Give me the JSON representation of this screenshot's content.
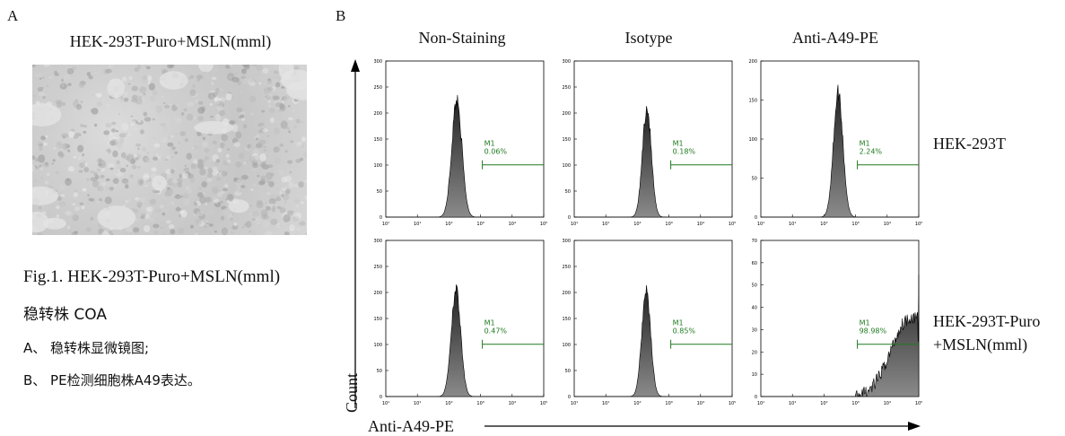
{
  "figure": {
    "panel_a_letter": "A",
    "panel_b_letter": "B",
    "panel_a_title": "HEK-293T-Puro+MSLN(mml)",
    "caption_line1": "Fig.1. HEK-293T-Puro+MSLN(mml)",
    "caption_line2": "稳转株 COA",
    "caption_line3": "A、 稳转株显微镜图;",
    "caption_line4": "B、 PE检测细胞株A49表达。",
    "x_axis_label": "Anti-A49-PE",
    "y_axis_label": "Count",
    "column_titles": [
      "Non-Staining",
      "Isotype",
      "Anti-A49-PE"
    ],
    "row_labels": [
      [
        "HEK-293T"
      ],
      [
        "HEK-293T-Puro",
        "+MSLN(mml)"
      ]
    ]
  },
  "colors": {
    "gate": "#1f7a1f",
    "fill": "#4a4a4a",
    "axis": "#000000"
  },
  "chart_data": [
    {
      "type": "area",
      "panel": "row1-non-staining",
      "x_scale": "log",
      "xlim": [
        1,
        100000
      ],
      "ylim": [
        0,
        300
      ],
      "y_ticks": [
        0,
        50,
        100,
        150,
        200,
        250,
        300
      ],
      "x_ticks": [
        "10¹",
        "10²",
        "10³",
        "10⁴",
        "10⁵"
      ],
      "peak_log": 2.25,
      "peak_height": 225,
      "peak_width": 0.16,
      "gate": {
        "label": "M1",
        "percent": "0.06%",
        "start": 1000
      }
    },
    {
      "type": "area",
      "panel": "row1-isotype",
      "x_scale": "log",
      "xlim": [
        1,
        100000
      ],
      "ylim": [
        0,
        300
      ],
      "y_ticks": [
        0,
        50,
        100,
        150,
        200,
        250,
        300
      ],
      "x_ticks": [
        "10¹",
        "10²",
        "10³",
        "10⁴",
        "10⁵"
      ],
      "peak_log": 2.3,
      "peak_height": 210,
      "peak_width": 0.14,
      "gate": {
        "label": "M1",
        "percent": "0.18%",
        "start": 1000
      }
    },
    {
      "type": "area",
      "panel": "row1-anti-a49-pe",
      "x_scale": "log",
      "xlim": [
        1,
        100000
      ],
      "ylim": [
        0,
        200
      ],
      "y_ticks": [
        0,
        50,
        100,
        150,
        200
      ],
      "x_ticks": [
        "10¹",
        "10²",
        "10³",
        "10⁴",
        "10⁵"
      ],
      "peak_log": 2.45,
      "peak_height": 160,
      "peak_width": 0.15,
      "gate": {
        "label": "M1",
        "percent": "2.24%",
        "start": 1000
      }
    },
    {
      "type": "area",
      "panel": "row2-non-staining",
      "x_scale": "log",
      "xlim": [
        1,
        100000
      ],
      "ylim": [
        0,
        300
      ],
      "y_ticks": [
        0,
        50,
        100,
        150,
        200,
        250,
        300
      ],
      "x_ticks": [
        "10¹",
        "10²",
        "10³",
        "10⁴",
        "10⁵"
      ],
      "peak_log": 2.22,
      "peak_height": 205,
      "peak_width": 0.15,
      "gate": {
        "label": "M1",
        "percent": "0.47%",
        "start": 1000
      }
    },
    {
      "type": "area",
      "panel": "row2-isotype",
      "x_scale": "log",
      "xlim": [
        1,
        100000
      ],
      "ylim": [
        0,
        300
      ],
      "y_ticks": [
        0,
        50,
        100,
        150,
        200,
        250,
        300
      ],
      "x_ticks": [
        "10¹",
        "10²",
        "10³",
        "10⁴",
        "10⁵"
      ],
      "peak_log": 2.28,
      "peak_height": 205,
      "peak_width": 0.14,
      "gate": {
        "label": "M1",
        "percent": "0.85%",
        "start": 1000
      }
    },
    {
      "type": "area",
      "panel": "row2-anti-a49-pe",
      "x_scale": "log",
      "xlim": [
        1,
        100000
      ],
      "ylim": [
        0,
        70
      ],
      "y_ticks": [
        0,
        10,
        20,
        30,
        40,
        50,
        60,
        70
      ],
      "x_ticks": [
        "10¹",
        "10²",
        "10³",
        "10⁴",
        "10⁵"
      ],
      "shape": "rising",
      "peak_log": 4.6,
      "peak_height": 35,
      "gate": {
        "label": "M1",
        "percent": "98.98%",
        "start": 1000
      }
    }
  ]
}
